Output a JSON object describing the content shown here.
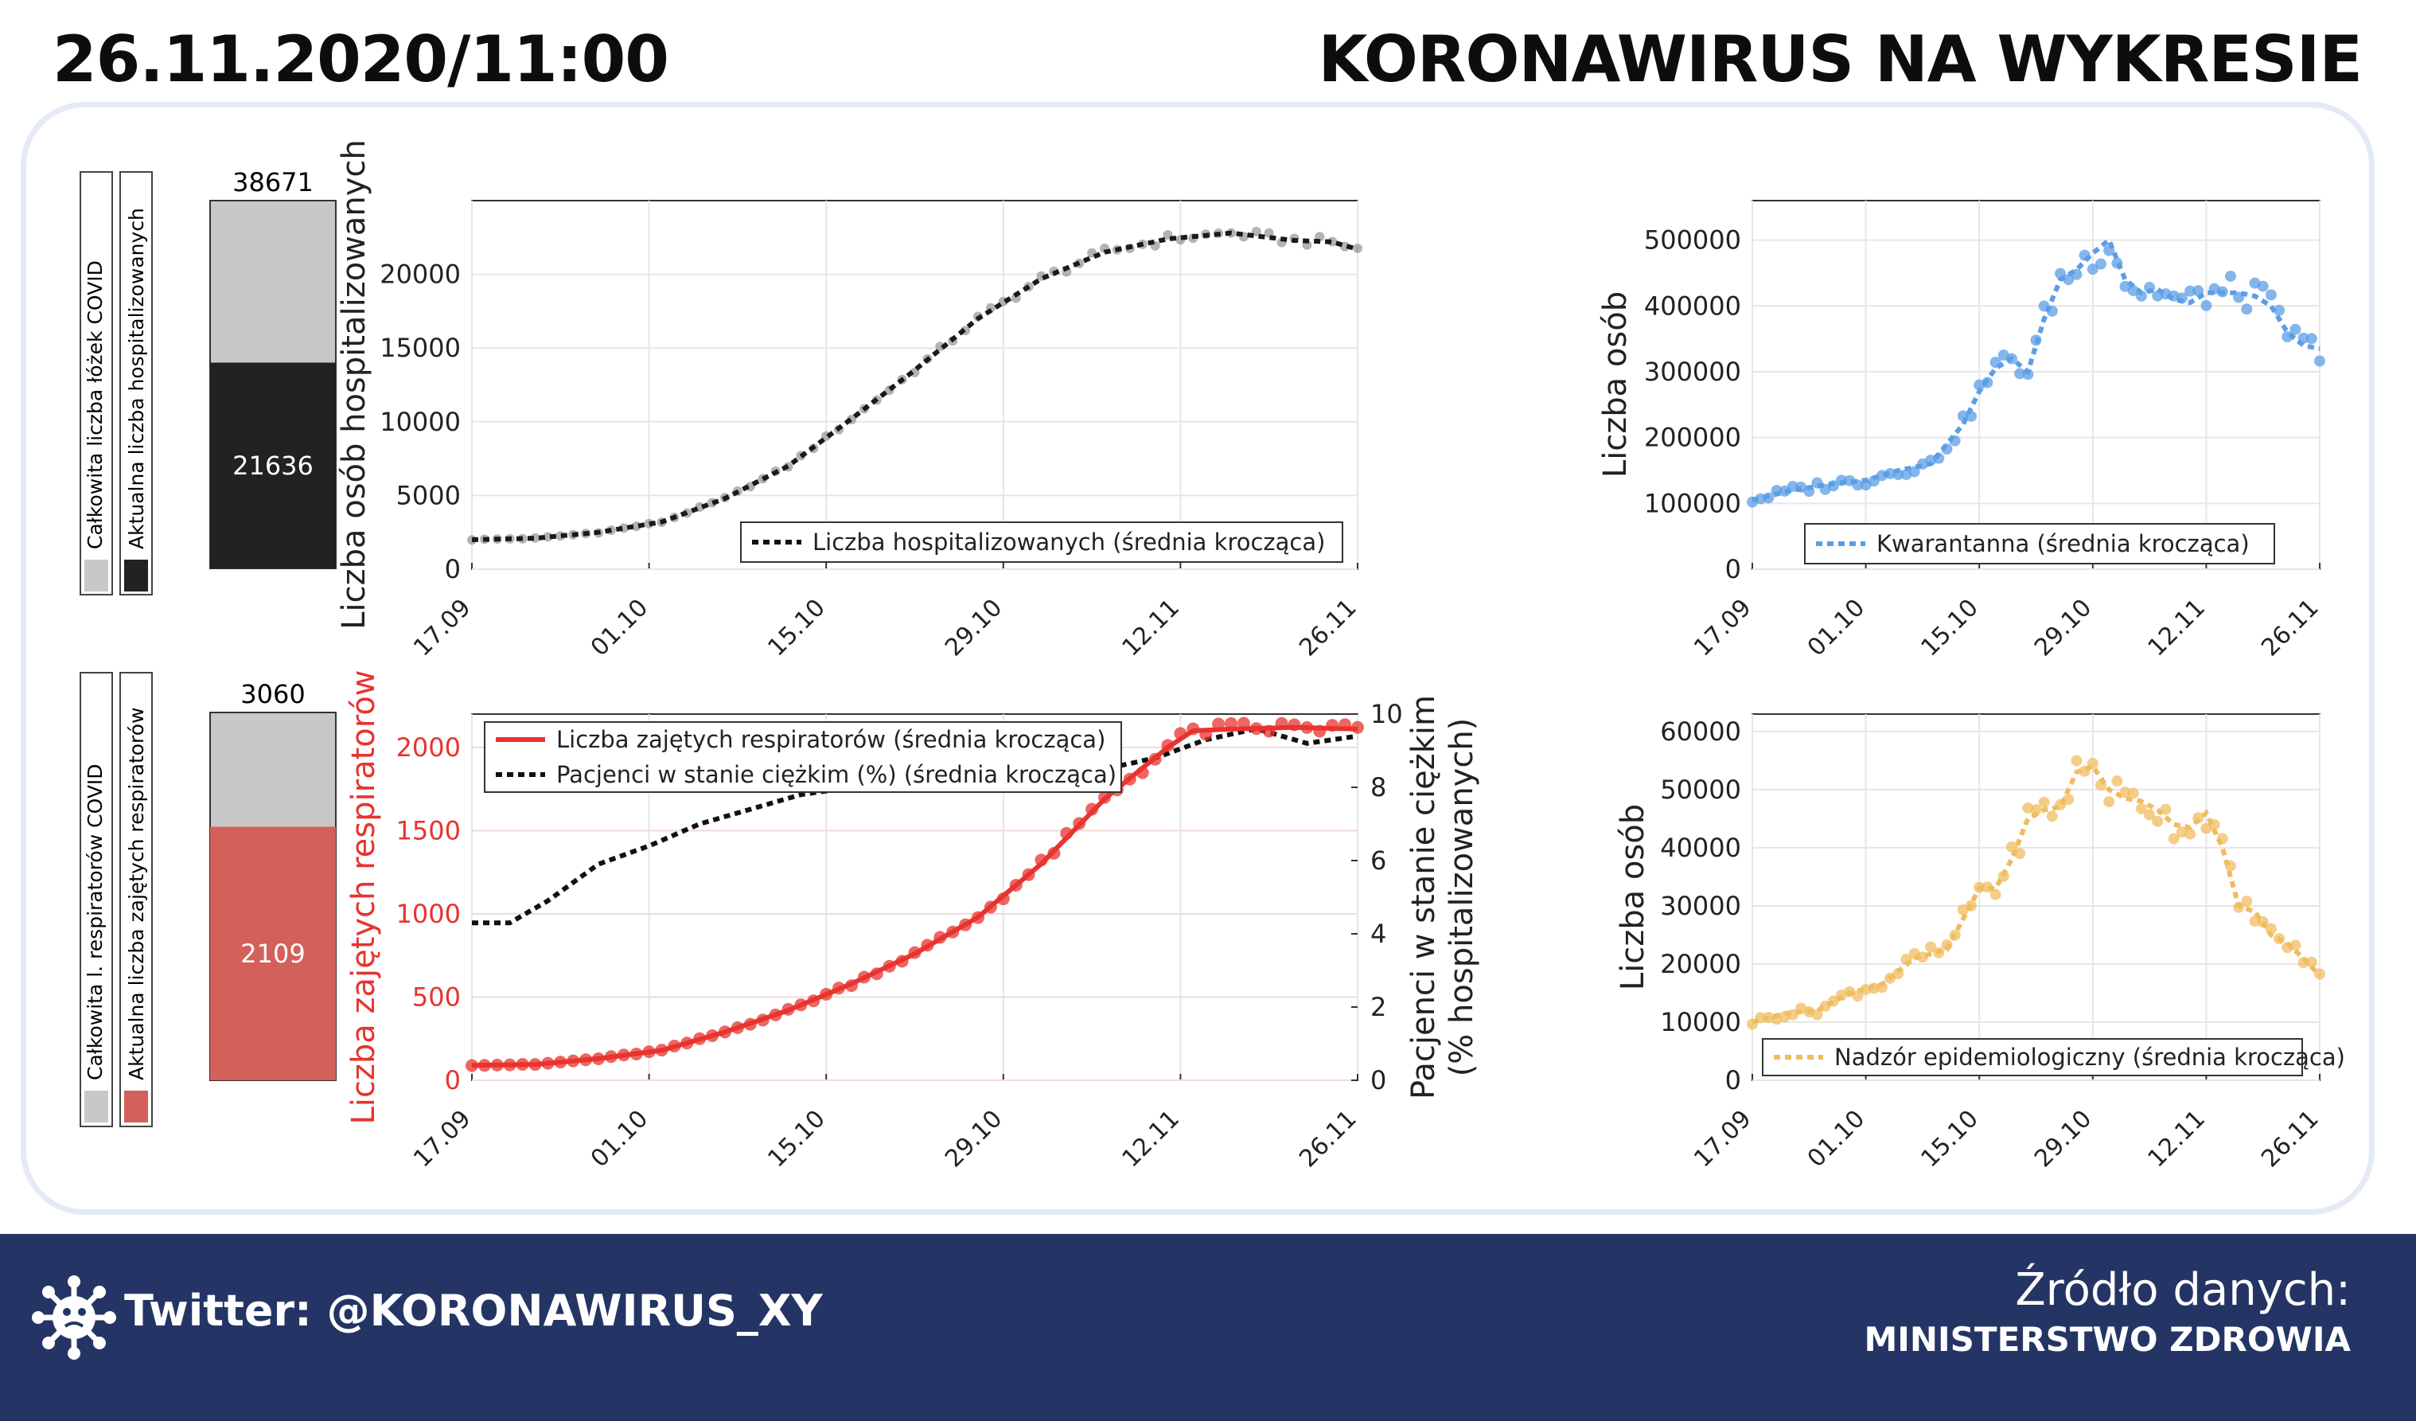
{
  "header": {
    "date": "26.11.2020/11:00",
    "title": "KORONAWIRUS NA WYKRESIE"
  },
  "footer": {
    "twitter": "Twitter: @KORONAWIRUS_XY",
    "source_label": "Źródło danych:",
    "source_name": "MINISTERSTWO ZDROWIA"
  },
  "colors": {
    "dark": "#222222",
    "grey": "#c8c8c8",
    "red": "#e8332e",
    "red_bar": "#d4605a",
    "blue": "#5b9ee6",
    "orange": "#f0bc60",
    "footer": "#243565"
  },
  "x_ticks": [
    "17.09",
    "01.10",
    "15.10",
    "29.10",
    "12.11",
    "26.11"
  ],
  "hosp_bar": {
    "total": "38671",
    "current": "21636",
    "total_value": 38671,
    "current_value": 21636,
    "legend_total": "Całkowita liczba łóżek COVID",
    "legend_current": "Aktualna liczba hospitalizowanych"
  },
  "resp_bar": {
    "total": "3060",
    "current": "2109",
    "total_value": 3060,
    "current_value": 2109,
    "legend_total": "Całkowita l. respiratorów COVID",
    "legend_current": "Aktualna liczba zajętych respiratorów"
  },
  "chart_data": [
    {
      "id": "hosp",
      "type": "line",
      "ylabel": "Liczba osób hospitalizowanych",
      "ylim": [
        0,
        25000
      ],
      "yticks": [
        0,
        5000,
        10000,
        15000,
        20000
      ],
      "ytick_labels": [
        "0",
        "5000",
        "10000",
        "15000",
        "20000"
      ],
      "x_range_days": [
        0,
        70
      ],
      "legend": "Liczba hospitalizowanych (średnia krocząca)",
      "legend_position": "bottom-right",
      "grid": true,
      "x": [
        0,
        5,
        10,
        15,
        20,
        25,
        30,
        35,
        40,
        45,
        50,
        55,
        60,
        62,
        65,
        68,
        70
      ],
      "values": [
        2000,
        2100,
        2500,
        3200,
        4800,
        7000,
        10200,
        13500,
        17000,
        19700,
        21500,
        22400,
        22800,
        22600,
        22300,
        22200,
        21700
      ]
    },
    {
      "id": "resp",
      "type": "line",
      "ylabel": "Liczba zajętych respiratorów",
      "ylabel_right": "Pacjenci w stanie ciężkim (% hospitalizowanych)",
      "ylim": [
        0,
        2200
      ],
      "yticks": [
        0,
        500,
        1000,
        1500,
        2000
      ],
      "ytick_labels": [
        "0",
        "500",
        "1000",
        "1500",
        "2000"
      ],
      "ylim_right": [
        0,
        10
      ],
      "yticks_right": [
        0,
        2,
        4,
        6,
        8,
        10
      ],
      "ytick_labels_right": [
        "0",
        "2",
        "4",
        "6",
        "8",
        "10"
      ],
      "x_range_days": [
        0,
        70
      ],
      "legend_position": "top-left",
      "grid": true,
      "series": [
        {
          "name": "Liczba zajętych respiratorów (średnia krocząca)",
          "axis": "left",
          "x": [
            0,
            5,
            10,
            15,
            20,
            25,
            30,
            35,
            40,
            45,
            50,
            55,
            57,
            60,
            65,
            70
          ],
          "values": [
            90,
            95,
            130,
            180,
            290,
            420,
            580,
            760,
            980,
            1300,
            1690,
            2000,
            2100,
            2110,
            2120,
            2110
          ]
        },
        {
          "name": "Pacjenci w stanie ciężkim (%) (średnia krocząca)",
          "axis": "right",
          "x": [
            0,
            3,
            6,
            10,
            14,
            18,
            22,
            26,
            30,
            34,
            38,
            42,
            46,
            50,
            54,
            58,
            62,
            66,
            70
          ],
          "values": [
            4.3,
            4.3,
            4.9,
            5.9,
            6.4,
            7.0,
            7.4,
            7.8,
            8.0,
            8.1,
            8.2,
            8.3,
            8.35,
            8.5,
            8.8,
            9.3,
            9.6,
            9.2,
            9.4
          ]
        }
      ]
    },
    {
      "id": "kwar",
      "type": "line",
      "ylabel": "Liczba osób",
      "ylim": [
        0,
        560000
      ],
      "yticks": [
        0,
        100000,
        200000,
        300000,
        400000,
        500000
      ],
      "ytick_labels": [
        "0",
        "100000",
        "200000",
        "300000",
        "400000",
        "500000"
      ],
      "x_range_days": [
        0,
        70
      ],
      "legend": "Kwarantanna (średnia krocząca)",
      "legend_position": "bottom-center",
      "grid": true,
      "x": [
        0,
        5,
        10,
        14,
        18,
        22,
        26,
        28,
        30,
        32,
        34,
        36,
        38,
        40,
        42,
        44,
        46,
        48,
        50,
        52,
        54,
        56,
        58,
        60,
        62,
        64,
        66,
        68,
        70
      ],
      "values": [
        105000,
        120000,
        130000,
        135000,
        150000,
        160000,
        220000,
        270000,
        305000,
        320000,
        300000,
        380000,
        440000,
        455000,
        480000,
        500000,
        440000,
        420000,
        425000,
        410000,
        405000,
        420000,
        420000,
        420000,
        415000,
        400000,
        360000,
        340000,
        335000
      ]
    },
    {
      "id": "nadz",
      "type": "line",
      "ylabel": "Liczba osób",
      "ylim": [
        0,
        63000
      ],
      "yticks": [
        0,
        10000,
        20000,
        30000,
        40000,
        50000,
        60000
      ],
      "ytick_labels": [
        "0",
        "10000",
        "20000",
        "30000",
        "40000",
        "50000",
        "60000"
      ],
      "x_range_days": [
        0,
        70
      ],
      "legend": "Nadzór epidemiologiczny (średnia krocząca)",
      "legend_position": "bottom-center",
      "grid": true,
      "x": [
        0,
        4,
        8,
        12,
        16,
        20,
        24,
        28,
        30,
        32,
        34,
        36,
        38,
        40,
        42,
        44,
        46,
        48,
        50,
        52,
        54,
        56,
        58,
        60,
        62,
        64,
        66,
        68,
        70
      ],
      "values": [
        10000,
        11500,
        12000,
        15000,
        16500,
        21000,
        22500,
        33000,
        33000,
        38000,
        45000,
        46500,
        47000,
        53000,
        54000,
        50000,
        48500,
        48000,
        46500,
        44000,
        43500,
        46000,
        40000,
        30000,
        29000,
        25000,
        23500,
        21000,
        18000
      ]
    }
  ]
}
